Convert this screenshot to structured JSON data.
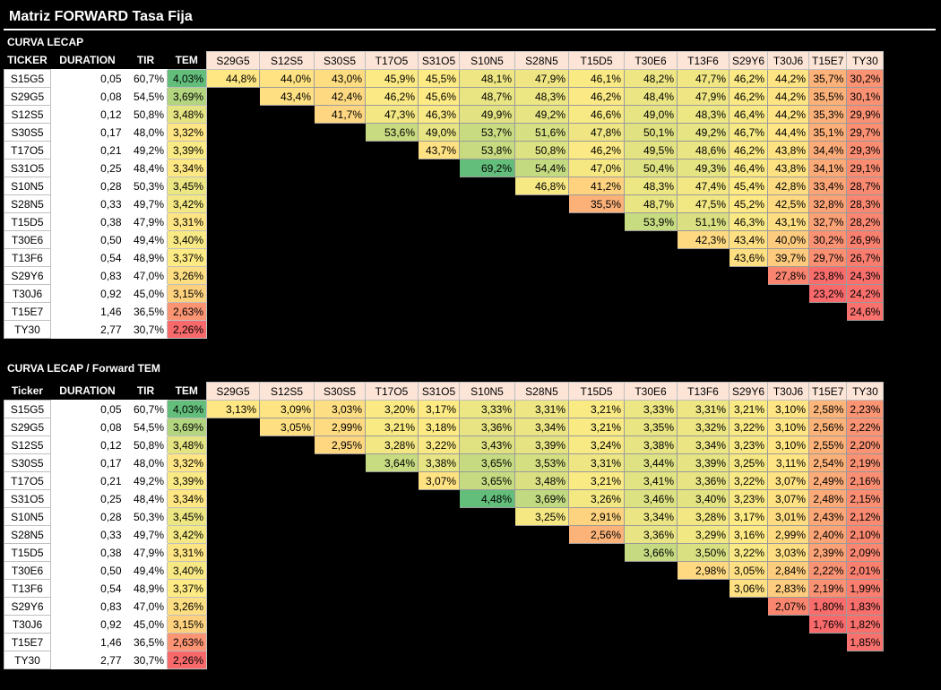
{
  "title": "Matriz FORWARD Tasa Fija",
  "colors": {
    "scale_low": "#f8696b",
    "scale_mid": "#ffeb84",
    "scale_high": "#63be7b",
    "ticker_header_bg": "#fce4d6"
  },
  "tickers": [
    "S15G5",
    "S29G5",
    "S12S5",
    "S30S5",
    "T17O5",
    "S31O5",
    "S10N5",
    "S28N5",
    "T15D5",
    "T30E6",
    "T13F6",
    "S29Y6",
    "T30J6",
    "T15E7",
    "TY30"
  ],
  "duration": [
    "0,05",
    "0,08",
    "0,12",
    "0,17",
    "0,21",
    "0,25",
    "0,28",
    "0,33",
    "0,38",
    "0,50",
    "0,54",
    "0,83",
    "0,92",
    "1,46",
    "2,77"
  ],
  "tir": [
    "60,7%",
    "54,5%",
    "50,8%",
    "48,0%",
    "49,2%",
    "48,4%",
    "50,3%",
    "49,7%",
    "47,9%",
    "49,4%",
    "48,9%",
    "47,0%",
    "45,0%",
    "36,5%",
    "30,7%"
  ],
  "tem": [
    "4,03%",
    "3,69%",
    "3,48%",
    "3,32%",
    "3,39%",
    "3,34%",
    "3,45%",
    "3,42%",
    "3,31%",
    "3,40%",
    "3,37%",
    "3,26%",
    "3,15%",
    "2,63%",
    "2,26%"
  ],
  "sections": [
    {
      "title": "CURVA LECAP",
      "headers": [
        "TICKER",
        "DURATION",
        "TIR",
        "TEM"
      ],
      "matrix": [
        [
          "44,8%",
          "44,0%",
          "43,0%",
          "45,9%",
          "45,5%",
          "48,1%",
          "47,9%",
          "46,1%",
          "48,2%",
          "47,7%",
          "46,2%",
          "44,2%",
          "35,7%",
          "30,2%"
        ],
        [
          "",
          "43,4%",
          "42,4%",
          "46,2%",
          "45,6%",
          "48,7%",
          "48,3%",
          "46,2%",
          "48,4%",
          "47,9%",
          "46,2%",
          "44,2%",
          "35,5%",
          "30,1%"
        ],
        [
          "",
          "",
          "41,7%",
          "47,3%",
          "46,3%",
          "49,9%",
          "49,2%",
          "46,6%",
          "49,0%",
          "48,3%",
          "46,4%",
          "44,2%",
          "35,3%",
          "29,9%"
        ],
        [
          "",
          "",
          "",
          "53,6%",
          "49,0%",
          "53,7%",
          "51,6%",
          "47,8%",
          "50,1%",
          "49,2%",
          "46,7%",
          "44,4%",
          "35,1%",
          "29,7%"
        ],
        [
          "",
          "",
          "",
          "",
          "43,7%",
          "53,8%",
          "50,8%",
          "46,2%",
          "49,5%",
          "48,6%",
          "46,2%",
          "43,8%",
          "34,4%",
          "29,3%"
        ],
        [
          "",
          "",
          "",
          "",
          "",
          "69,2%",
          "54,4%",
          "47,0%",
          "50,4%",
          "49,3%",
          "46,4%",
          "43,8%",
          "34,1%",
          "29,1%"
        ],
        [
          "",
          "",
          "",
          "",
          "",
          "",
          "46,8%",
          "41,2%",
          "48,3%",
          "47,4%",
          "45,4%",
          "42,8%",
          "33,4%",
          "28,7%"
        ],
        [
          "",
          "",
          "",
          "",
          "",
          "",
          "",
          "35,5%",
          "48,7%",
          "47,5%",
          "45,2%",
          "42,5%",
          "32,8%",
          "28,3%"
        ],
        [
          "",
          "",
          "",
          "",
          "",
          "",
          "",
          "",
          "53,9%",
          "51,1%",
          "46,3%",
          "43,1%",
          "32,7%",
          "28,2%"
        ],
        [
          "",
          "",
          "",
          "",
          "",
          "",
          "",
          "",
          "",
          "42,3%",
          "43,4%",
          "40,0%",
          "30,2%",
          "26,9%"
        ],
        [
          "",
          "",
          "",
          "",
          "",
          "",
          "",
          "",
          "",
          "",
          "43,6%",
          "39,7%",
          "29,7%",
          "26,7%"
        ],
        [
          "",
          "",
          "",
          "",
          "",
          "",
          "",
          "",
          "",
          "",
          "",
          "27,8%",
          "23,8%",
          "24,3%"
        ],
        [
          "",
          "",
          "",
          "",
          "",
          "",
          "",
          "",
          "",
          "",
          "",
          "",
          "23,2%",
          "24,2%"
        ],
        [
          "",
          "",
          "",
          "",
          "",
          "",
          "",
          "",
          "",
          "",
          "",
          "",
          "",
          "24,6%"
        ],
        [
          "",
          "",
          "",
          "",
          "",
          "",
          "",
          "",
          "",
          "",
          "",
          "",
          "",
          ""
        ]
      ]
    },
    {
      "title": "CURVA LECAP  / Forward TEM",
      "headers": [
        "Ticker",
        "DURATION",
        "TIR",
        "TEM"
      ],
      "matrix": [
        [
          "3,13%",
          "3,09%",
          "3,03%",
          "3,20%",
          "3,17%",
          "3,33%",
          "3,31%",
          "3,21%",
          "3,33%",
          "3,31%",
          "3,21%",
          "3,10%",
          "2,58%",
          "2,23%"
        ],
        [
          "",
          "3,05%",
          "2,99%",
          "3,21%",
          "3,18%",
          "3,36%",
          "3,34%",
          "3,21%",
          "3,35%",
          "3,32%",
          "3,22%",
          "3,10%",
          "2,56%",
          "2,22%"
        ],
        [
          "",
          "",
          "2,95%",
          "3,28%",
          "3,22%",
          "3,43%",
          "3,39%",
          "3,24%",
          "3,38%",
          "3,34%",
          "3,23%",
          "3,10%",
          "2,55%",
          "2,20%"
        ],
        [
          "",
          "",
          "",
          "3,64%",
          "3,38%",
          "3,65%",
          "3,53%",
          "3,31%",
          "3,44%",
          "3,39%",
          "3,25%",
          "3,11%",
          "2,54%",
          "2,19%"
        ],
        [
          "",
          "",
          "",
          "",
          "3,07%",
          "3,65%",
          "3,48%",
          "3,21%",
          "3,41%",
          "3,36%",
          "3,22%",
          "3,07%",
          "2,49%",
          "2,16%"
        ],
        [
          "",
          "",
          "",
          "",
          "",
          "4,48%",
          "3,69%",
          "3,26%",
          "3,46%",
          "3,40%",
          "3,23%",
          "3,07%",
          "2,48%",
          "2,15%"
        ],
        [
          "",
          "",
          "",
          "",
          "",
          "",
          "3,25%",
          "2,91%",
          "3,34%",
          "3,28%",
          "3,17%",
          "3,01%",
          "2,43%",
          "2,12%"
        ],
        [
          "",
          "",
          "",
          "",
          "",
          "",
          "",
          "2,56%",
          "3,36%",
          "3,29%",
          "3,16%",
          "2,99%",
          "2,40%",
          "2,10%"
        ],
        [
          "",
          "",
          "",
          "",
          "",
          "",
          "",
          "",
          "3,66%",
          "3,50%",
          "3,22%",
          "3,03%",
          "2,39%",
          "2,09%"
        ],
        [
          "",
          "",
          "",
          "",
          "",
          "",
          "",
          "",
          "",
          "2,98%",
          "3,05%",
          "2,84%",
          "2,22%",
          "2,01%"
        ],
        [
          "",
          "",
          "",
          "",
          "",
          "",
          "",
          "",
          "",
          "",
          "3,06%",
          "2,83%",
          "2,19%",
          "1,99%"
        ],
        [
          "",
          "",
          "",
          "",
          "",
          "",
          "",
          "",
          "",
          "",
          "",
          "2,07%",
          "1,80%",
          "1,83%"
        ],
        [
          "",
          "",
          "",
          "",
          "",
          "",
          "",
          "",
          "",
          "",
          "",
          "",
          "1,76%",
          "1,82%"
        ],
        [
          "",
          "",
          "",
          "",
          "",
          "",
          "",
          "",
          "",
          "",
          "",
          "",
          "",
          "1,85%"
        ],
        [
          "",
          "",
          "",
          "",
          "",
          "",
          "",
          "",
          "",
          "",
          "",
          "",
          "",
          ""
        ]
      ]
    }
  ]
}
